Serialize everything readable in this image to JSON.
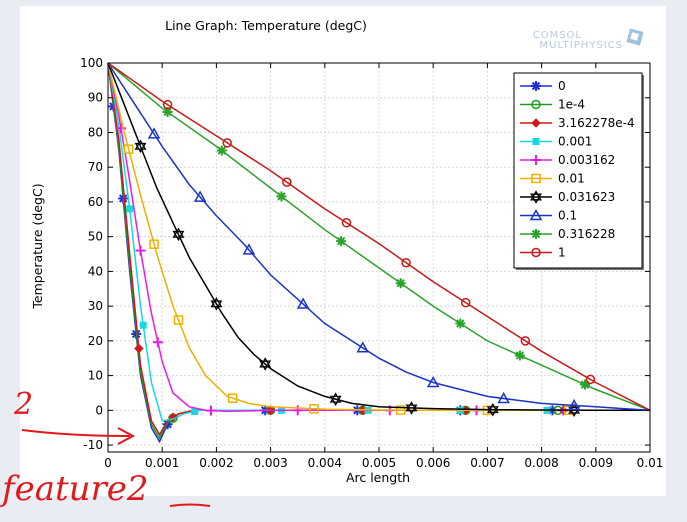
{
  "logo": {
    "line1": "COMSOL",
    "line2": "MULTIPHYSICS",
    "icon": "comsol-cube-icon"
  },
  "annotation": {
    "number": "2",
    "text": "feature2",
    "color": "#e0191c"
  },
  "chart_data": {
    "type": "line",
    "title": "Line Graph: Temperature (degC)",
    "xlabel": "Arc length",
    "ylabel": "Temperature (degC)",
    "xlim": [
      0,
      0.01
    ],
    "ylim": [
      -12,
      100
    ],
    "x_ticks": [
      0,
      0.001,
      0.002,
      0.003,
      0.004,
      0.005,
      0.006,
      0.007,
      0.008,
      0.009,
      0.01
    ],
    "x_tick_labels": [
      "0",
      "0.001",
      "0.002",
      "0.003",
      "0.004",
      "0.005",
      "0.006",
      "0.007",
      "0.008",
      "0.009",
      "0.01"
    ],
    "y_ticks": [
      -10,
      0,
      10,
      20,
      30,
      40,
      50,
      60,
      70,
      80,
      90,
      100
    ],
    "y_tick_labels": [
      "-10",
      "0",
      "10",
      "20",
      "30",
      "40",
      "50",
      "60",
      "70",
      "80",
      "90",
      "100"
    ],
    "grid": true,
    "legend_position": "top-right",
    "series": [
      {
        "name": "0",
        "color": "#1f2fd6",
        "marker": "asterisk",
        "x": [
          0,
          0.0002,
          0.0004,
          0.0006,
          0.0008,
          0.00095,
          0.0011,
          0.0013,
          0.0016,
          0.002,
          0.0025,
          0.003,
          0.004,
          0.005,
          0.006,
          0.007,
          0.008,
          0.009,
          0.01
        ],
        "y": [
          100,
          75,
          40,
          10,
          -5,
          -9,
          -4,
          -1,
          0,
          0,
          0,
          0,
          0,
          0,
          0,
          0,
          0,
          0,
          0
        ],
        "mx": [
          0.0001,
          0.00028,
          0.00052,
          0.0011,
          0.0029,
          0.0046,
          0.0065,
          0.0082
        ]
      },
      {
        "name": "1e-4",
        "color": "#19a019",
        "marker": "circle",
        "x": [
          0,
          0.0002,
          0.0004,
          0.0006,
          0.0008,
          0.00095,
          0.0011,
          0.0013,
          0.0016,
          0.002,
          0.0025,
          0.003,
          0.004,
          0.005,
          0.006,
          0.007,
          0.008,
          0.009,
          0.01
        ],
        "y": [
          100,
          76,
          42,
          11,
          -4,
          -8,
          -3.5,
          -1,
          0,
          0,
          0,
          0,
          0,
          0,
          0,
          0,
          0,
          0,
          0
        ],
        "mx": [
          0.0012,
          0.003,
          0.0047,
          0.0066,
          0.0083
        ]
      },
      {
        "name": "3.162278e-4",
        "color": "#d01818",
        "marker": "diamond",
        "x": [
          0,
          0.0002,
          0.0004,
          0.0006,
          0.0008,
          0.00095,
          0.0011,
          0.0013,
          0.0016,
          0.002,
          0.0025,
          0.003,
          0.004,
          0.005,
          0.006,
          0.007,
          0.008,
          0.009,
          0.01
        ],
        "y": [
          100,
          78,
          45,
          13,
          -3,
          -7,
          -3,
          -1,
          0,
          0,
          0,
          0,
          0,
          0,
          0,
          0,
          0,
          0,
          0
        ],
        "mx": [
          0.00057,
          0.0012,
          0.003,
          0.0047,
          0.0066,
          0.0084
        ]
      },
      {
        "name": "0.001",
        "color": "#18d8e0",
        "marker": "square",
        "x": [
          0,
          0.0002,
          0.0004,
          0.0006,
          0.0008,
          0.001,
          0.0012,
          0.0014,
          0.0017,
          0.002,
          0.0025,
          0.003,
          0.004,
          0.005,
          0.006,
          0.007,
          0.008,
          0.009,
          0.01
        ],
        "y": [
          100,
          82,
          58,
          30,
          8,
          -3,
          -2.5,
          -1,
          0,
          0,
          0,
          0,
          0,
          0,
          0,
          0,
          0,
          0,
          0
        ],
        "mx": [
          0.0004,
          0.00065,
          0.0016,
          0.0032,
          0.0048,
          0.0065,
          0.0081
        ]
      },
      {
        "name": "0.003162",
        "color": "#e81ae8",
        "marker": "plus",
        "x": [
          0,
          0.0002,
          0.0004,
          0.0006,
          0.0008,
          0.001,
          0.0012,
          0.0015,
          0.0018,
          0.0022,
          0.003,
          0.004,
          0.005,
          0.006,
          0.007,
          0.008,
          0.009,
          0.01
        ],
        "y": [
          100,
          85,
          66,
          46,
          28,
          14,
          5,
          1,
          0,
          -0.3,
          0,
          0,
          0,
          0,
          0,
          0,
          0,
          0
        ],
        "mx": [
          0.00024,
          0.0006,
          0.00092,
          0.0019,
          0.0035,
          0.0052,
          0.0068,
          0.0084
        ]
      },
      {
        "name": "0.01",
        "color": "#f0b000",
        "marker": "square-open",
        "x": [
          0,
          0.0003,
          0.0006,
          0.0009,
          0.0012,
          0.0015,
          0.0018,
          0.0022,
          0.0026,
          0.003,
          0.004,
          0.005,
          0.006,
          0.007,
          0.008,
          0.009,
          0.01
        ],
        "y": [
          100,
          80,
          62,
          45,
          30,
          18,
          10,
          4,
          2,
          1,
          0.3,
          0.1,
          0,
          0,
          0,
          0,
          0
        ],
        "mx": [
          0.00038,
          0.00085,
          0.0013,
          0.0023,
          0.0038,
          0.0054,
          0.007,
          0.0085
        ]
      },
      {
        "name": "0.031623",
        "color": "#000000",
        "marker": "star-open",
        "x": [
          0,
          0.0003,
          0.0006,
          0.0009,
          0.0012,
          0.0015,
          0.0018,
          0.0021,
          0.0024,
          0.0027,
          0.003,
          0.0035,
          0.004,
          0.0045,
          0.005,
          0.006,
          0.007,
          0.008,
          0.009,
          0.01
        ],
        "y": [
          100,
          88,
          76,
          64,
          54,
          44,
          36,
          28,
          21,
          16,
          12,
          7,
          4,
          2,
          1,
          0.5,
          0.2,
          0.1,
          0,
          0
        ],
        "mx": [
          0.0006,
          0.0013,
          0.002,
          0.0029,
          0.0042,
          0.0056,
          0.0071,
          0.0086
        ]
      },
      {
        "name": "0.1",
        "color": "#1a33c8",
        "marker": "triangle-open",
        "x": [
          0,
          0.0005,
          0.001,
          0.0015,
          0.002,
          0.0025,
          0.003,
          0.0035,
          0.004,
          0.0045,
          0.005,
          0.0055,
          0.006,
          0.0065,
          0.007,
          0.0075,
          0.008,
          0.0085,
          0.009,
          0.0095,
          0.01
        ],
        "y": [
          100,
          88,
          76,
          65,
          56,
          48,
          39,
          32,
          25,
          20,
          15,
          11,
          8,
          6,
          4,
          3,
          2,
          1.5,
          1,
          0.5,
          0
        ],
        "mx": [
          0.00085,
          0.0017,
          0.0026,
          0.0036,
          0.0047,
          0.006,
          0.0073,
          0.0086
        ]
      },
      {
        "name": "0.316228",
        "color": "#2aa32a",
        "marker": "asterisk",
        "x": [
          0,
          0.001,
          0.002,
          0.003,
          0.004,
          0.005,
          0.006,
          0.007,
          0.008,
          0.009,
          0.01
        ],
        "y": [
          100,
          87,
          76,
          64,
          52,
          41,
          30,
          20,
          13,
          6,
          0
        ],
        "mx": [
          0.0011,
          0.0021,
          0.0032,
          0.0043,
          0.0054,
          0.0065,
          0.0076,
          0.0088
        ]
      },
      {
        "name": "1",
        "color": "#cc1818",
        "marker": "circle-open",
        "x": [
          0,
          0.001,
          0.002,
          0.003,
          0.004,
          0.005,
          0.006,
          0.007,
          0.008,
          0.009,
          0.01
        ],
        "y": [
          100,
          89,
          79,
          69,
          58,
          48,
          37,
          27,
          17,
          8,
          0
        ],
        "mx": [
          0.0011,
          0.0022,
          0.0033,
          0.0044,
          0.0055,
          0.0066,
          0.0077,
          0.0089
        ]
      }
    ]
  }
}
